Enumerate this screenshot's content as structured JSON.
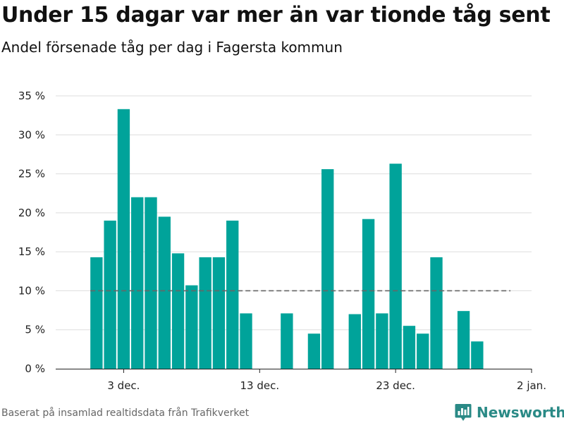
{
  "title": "Under 15 dagar var mer än var tionde tåg sent",
  "subtitle": "Andel försenade tåg per dag i Fagersta kommun",
  "footer": "Baserat på insamlad realtidsdata från Trafikverket",
  "brand": {
    "name": "Newsworthy",
    "icon": "newsworthy-logo-icon"
  },
  "colors": {
    "bar": "#00a39a",
    "grid": "#dddddd",
    "reference_line": "#666666",
    "brand": "#2a8a86"
  },
  "chart_data": {
    "type": "bar",
    "title": "Under 15 dagar var mer än var tionde tåg sent",
    "subtitle": "Andel försenade tåg per dag i Fagersta kommun",
    "xlabel": "",
    "ylabel": "",
    "x_range": [
      "2019-11-28",
      "2020-01-02"
    ],
    "ylim": [
      0,
      35
    ],
    "y_unit": "%",
    "yticks": [
      0,
      5,
      10,
      15,
      20,
      25,
      30,
      35
    ],
    "ytick_labels": [
      "0 %",
      "5 %",
      "10 %",
      "15 %",
      "20 %",
      "25 %",
      "30 %",
      "35 %"
    ],
    "xticks": [
      "2019-12-03",
      "2019-12-13",
      "2019-12-23",
      "2020-01-02"
    ],
    "xtick_labels": [
      "3 dec.",
      "13 dec.",
      "23 dec.",
      "2 jan."
    ],
    "grid": true,
    "legend": "none",
    "reference_line": {
      "y": 10,
      "style": "dashed",
      "x_from": "2019-12-01",
      "x_to": "2019-12-31"
    },
    "x": [
      "2019-12-01",
      "2019-12-02",
      "2019-12-03",
      "2019-12-04",
      "2019-12-05",
      "2019-12-06",
      "2019-12-07",
      "2019-12-08",
      "2019-12-09",
      "2019-12-10",
      "2019-12-11",
      "2019-12-12",
      "2019-12-13",
      "2019-12-14",
      "2019-12-15",
      "2019-12-16",
      "2019-12-17",
      "2019-12-18",
      "2019-12-19",
      "2019-12-20",
      "2019-12-21",
      "2019-12-22",
      "2019-12-23",
      "2019-12-24",
      "2019-12-25",
      "2019-12-26",
      "2019-12-27",
      "2019-12-28",
      "2019-12-29",
      "2019-12-30",
      "2019-12-31"
    ],
    "values": [
      14.3,
      19.0,
      33.3,
      22.0,
      22.0,
      19.5,
      14.8,
      10.7,
      14.3,
      14.3,
      19.0,
      7.1,
      0,
      0,
      7.1,
      0,
      4.5,
      25.6,
      0,
      7.0,
      19.2,
      7.1,
      26.3,
      5.5,
      4.5,
      14.3,
      0,
      7.4,
      3.5,
      0,
      0
    ]
  }
}
